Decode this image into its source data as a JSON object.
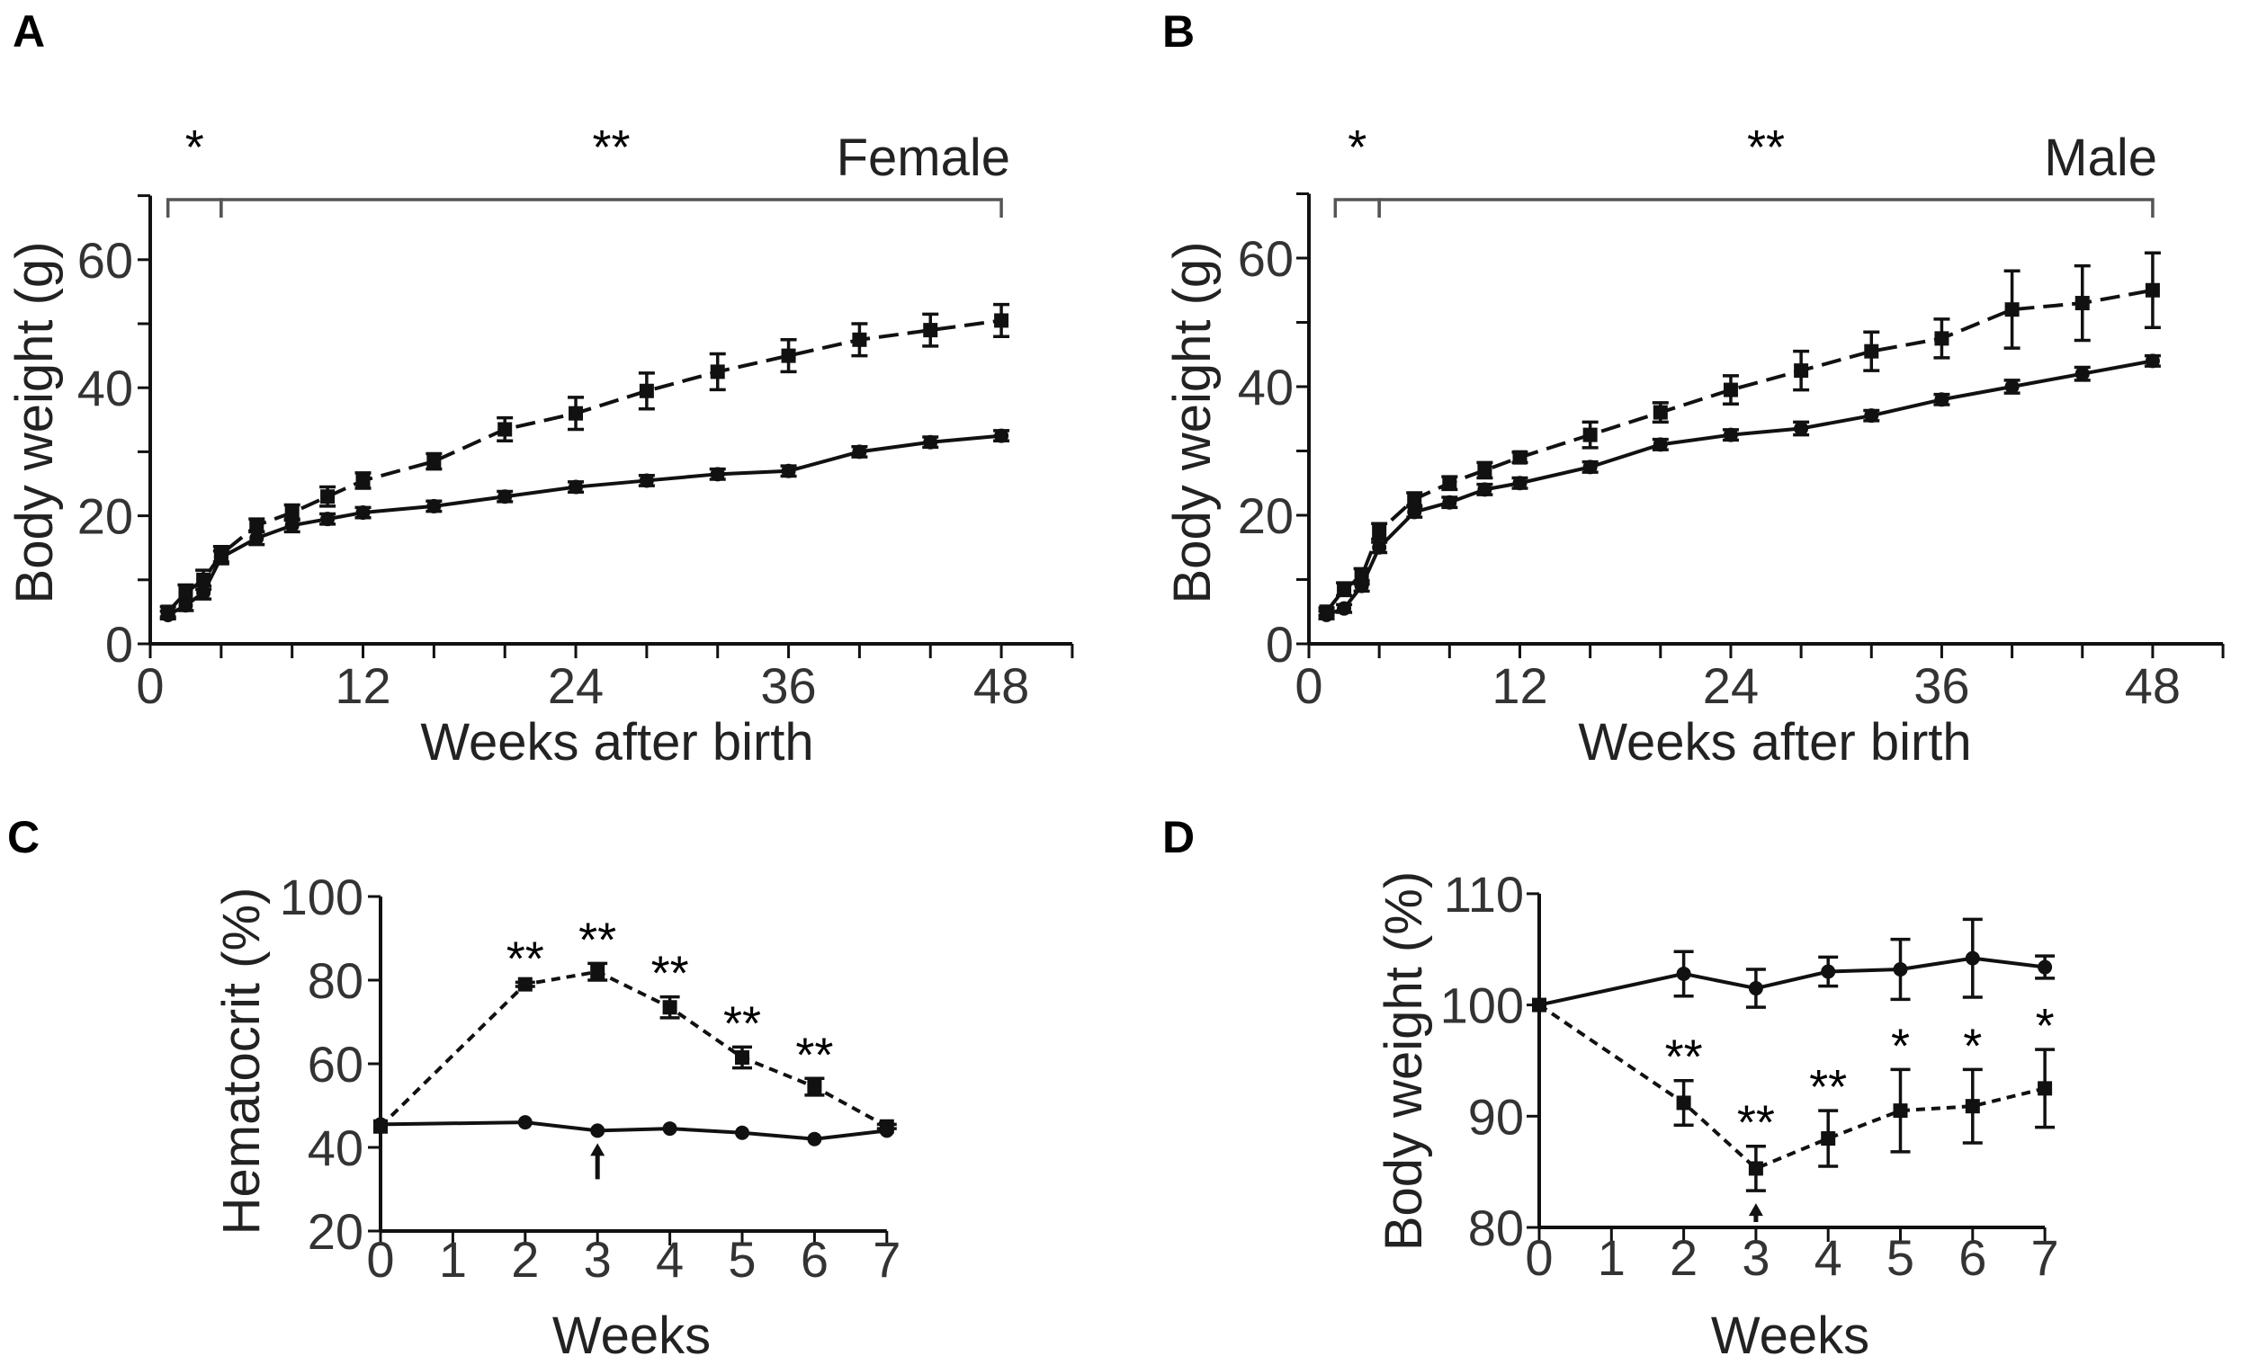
{
  "chart_data": [
    {
      "panel": "A",
      "type": "line",
      "group_label": "Female",
      "xlabel": "Weeks after birth",
      "ylabel": "Body weight (g)",
      "xlim": [
        0,
        52
      ],
      "ylim": [
        0,
        70
      ],
      "xticks": [
        0,
        4,
        8,
        12,
        16,
        20,
        24,
        28,
        32,
        36,
        40,
        44,
        48,
        52
      ],
      "xticklabels": {
        "0": "0",
        "12": "12",
        "24": "24",
        "36": "36",
        "48": "48"
      },
      "yticks": [
        0,
        10,
        20,
        30,
        40,
        50,
        60,
        70
      ],
      "yticklabels": {
        "0": "0",
        "20": "20",
        "40": "40",
        "60": "60"
      },
      "x": [
        1,
        2,
        3,
        4,
        6,
        8,
        10,
        12,
        16,
        20,
        24,
        28,
        32,
        36,
        40,
        44,
        48
      ],
      "series": [
        {
          "name": "dashed (squares)",
          "style": "dashed",
          "marker": "square",
          "values": [
            5,
            8,
            10,
            14,
            18.5,
            20.5,
            23,
            25.5,
            28.5,
            33.5,
            36,
            39.5,
            42.5,
            45,
            47.5,
            49,
            50.5
          ],
          "errors": [
            0.8,
            1.2,
            1.5,
            1.2,
            1,
            1.2,
            1.5,
            1.2,
            1.2,
            1.8,
            2.5,
            2.8,
            2.8,
            2.5,
            2.5,
            2.5,
            2.5
          ]
        },
        {
          "name": "solid",
          "style": "solid",
          "marker": "circle",
          "values": [
            4.5,
            6,
            8,
            13.5,
            16.5,
            18.5,
            19.5,
            20.5,
            21.5,
            23,
            24.5,
            25.5,
            26.5,
            27,
            30,
            31.5,
            32.5
          ],
          "errors": [
            0.6,
            0.8,
            1,
            1,
            1,
            1,
            0.8,
            0.8,
            0.8,
            0.8,
            0.8,
            0.8,
            0.8,
            0.8,
            0.8,
            0.8,
            0.8
          ]
        }
      ],
      "significance": [
        {
          "label": "*",
          "from": 1,
          "to": 4
        },
        {
          "label": "**",
          "from": 4,
          "to": 48
        }
      ]
    },
    {
      "panel": "B",
      "type": "line",
      "group_label": "Male",
      "xlabel": "Weeks after birth",
      "ylabel": "Body weight (g)",
      "xlim": [
        0,
        52
      ],
      "ylim": [
        0,
        70
      ],
      "xticks": [
        0,
        4,
        8,
        12,
        16,
        20,
        24,
        28,
        32,
        36,
        40,
        44,
        48,
        52
      ],
      "xticklabels": {
        "0": "0",
        "12": "12",
        "24": "24",
        "36": "36",
        "48": "48"
      },
      "yticks": [
        0,
        10,
        20,
        30,
        40,
        50,
        60,
        70
      ],
      "yticklabels": {
        "0": "0",
        "20": "20",
        "40": "40",
        "60": "60"
      },
      "x": [
        1,
        2,
        3,
        4,
        6,
        8,
        10,
        12,
        16,
        20,
        24,
        28,
        32,
        36,
        40,
        44,
        48
      ],
      "series": [
        {
          "name": "dashed (squares)",
          "style": "dashed",
          "marker": "square",
          "values": [
            5,
            8.5,
            10.5,
            17.5,
            22.5,
            25,
            27,
            29,
            32.5,
            36,
            39.5,
            42.5,
            45.5,
            47.5,
            52,
            53,
            55
          ],
          "errors": [
            0.6,
            1,
            1.2,
            1.2,
            1,
            1,
            1.2,
            0.8,
            2,
            1.5,
            2.2,
            3,
            3,
            3,
            6,
            5.8,
            5.8
          ]
        },
        {
          "name": "solid",
          "style": "solid",
          "marker": "circle",
          "values": [
            4.5,
            5.5,
            9,
            15,
            20.5,
            22,
            24,
            25,
            27.5,
            31,
            32.5,
            33.5,
            35.5,
            38,
            40,
            42,
            44
          ],
          "errors": [
            0.6,
            0.6,
            0.8,
            0.8,
            0.8,
            0.8,
            0.8,
            0.8,
            0.8,
            0.8,
            0.8,
            1,
            0.8,
            0.8,
            1,
            1,
            0.8
          ]
        }
      ],
      "significance": [
        {
          "label": "*",
          "from": 1.5,
          "to": 4
        },
        {
          "label": "**",
          "from": 4,
          "to": 48
        }
      ]
    },
    {
      "panel": "C",
      "type": "line",
      "xlabel": "Weeks",
      "ylabel": "Hematocrit (%)",
      "xlim": [
        0,
        7
      ],
      "ylim": [
        20,
        100
      ],
      "xticks": [
        0,
        1,
        2,
        3,
        4,
        5,
        6,
        7
      ],
      "xticklabels": {
        "0": "0",
        "1": "1",
        "2": "2",
        "3": "3",
        "4": "4",
        "5": "5",
        "6": "6",
        "7": "7"
      },
      "yticks": [
        20,
        40,
        60,
        80,
        100
      ],
      "yticklabels": {
        "20": "20",
        "40": "40",
        "60": "60",
        "80": "80",
        "100": "100"
      },
      "x": [
        0,
        2,
        3,
        4,
        5,
        6,
        7
      ],
      "series": [
        {
          "name": "dashed (squares)",
          "style": "dashed",
          "marker": "square",
          "values": [
            45,
            79,
            82,
            73.5,
            61.5,
            54.5,
            45
          ],
          "errors": [
            0,
            0.5,
            2,
            2.5,
            2.5,
            2,
            0.5
          ]
        },
        {
          "name": "solid",
          "style": "solid",
          "marker": "circle",
          "values": [
            45.5,
            46,
            44,
            44.5,
            43.5,
            42,
            44
          ],
          "errors": [
            0,
            0,
            0,
            0,
            0,
            0,
            0
          ]
        }
      ],
      "point_annotations": [
        {
          "x": 2,
          "label": "**"
        },
        {
          "x": 3,
          "label": "**"
        },
        {
          "x": 4,
          "label": "**"
        },
        {
          "x": 5,
          "label": "**"
        },
        {
          "x": 6,
          "label": "**"
        }
      ],
      "arrow_at": 3
    },
    {
      "panel": "D",
      "type": "line",
      "xlabel": "Weeks",
      "ylabel": "Body weight (%)",
      "xlim": [
        0,
        7
      ],
      "ylim": [
        80,
        110
      ],
      "xticks": [
        0,
        1,
        2,
        3,
        4,
        5,
        6,
        7
      ],
      "xticklabels": {
        "0": "0",
        "1": "1",
        "2": "2",
        "3": "3",
        "4": "4",
        "5": "5",
        "6": "6",
        "7": "7"
      },
      "yticks": [
        80,
        90,
        100,
        110
      ],
      "yticklabels": {
        "80": "80",
        "90": "90",
        "100": "100",
        "110": "110"
      },
      "x": [
        0,
        2,
        3,
        4,
        5,
        6,
        7
      ],
      "series": [
        {
          "name": "solid",
          "style": "solid",
          "marker": "circle",
          "values": [
            100,
            102.8,
            101.5,
            103,
            103.2,
            104.2,
            103.4
          ],
          "errors": [
            0,
            2,
            1.7,
            1.3,
            2.7,
            3.5,
            1
          ]
        },
        {
          "name": "dashed (squares)",
          "style": "dashed",
          "marker": "square",
          "values": [
            100,
            91.2,
            85.3,
            88,
            90.5,
            90.9,
            92.5
          ],
          "errors": [
            0,
            2,
            2,
            2.5,
            3.7,
            3.3,
            3.5
          ]
        }
      ],
      "point_annotations": [
        {
          "x": 2,
          "label": "**"
        },
        {
          "x": 3,
          "label": "**"
        },
        {
          "x": 4,
          "label": "**"
        },
        {
          "x": 5,
          "label": "*"
        },
        {
          "x": 6,
          "label": "*"
        },
        {
          "x": 7,
          "label": "*"
        }
      ],
      "arrow_at": 3
    }
  ]
}
